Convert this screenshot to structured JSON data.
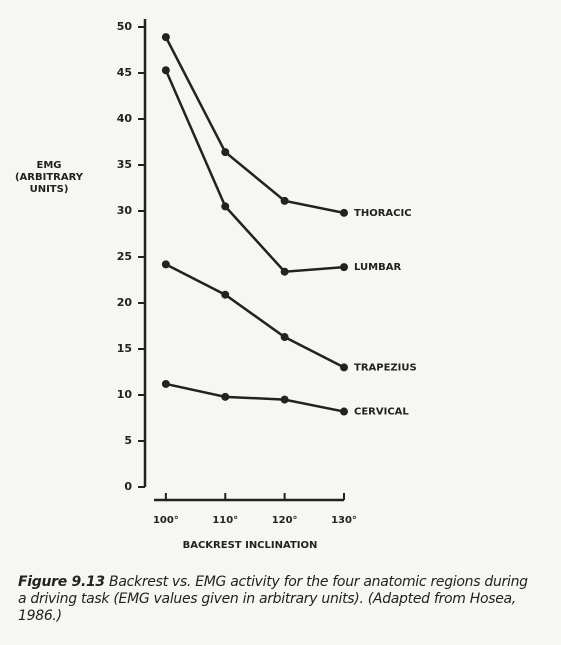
{
  "chart_data": {
    "type": "line",
    "x_label": "BACKREST INCLINATION",
    "y_label": "EMG (ARBITRARY UNITS)",
    "x": [
      100,
      110,
      120,
      130
    ],
    "xlim": [
      98,
      130
    ],
    "xticks": [
      {
        "value": 100,
        "label": "100°"
      },
      {
        "value": 110,
        "label": "110°"
      },
      {
        "value": 120,
        "label": "120°"
      },
      {
        "value": 130,
        "label": "130°"
      }
    ],
    "ylim": [
      0,
      50
    ],
    "yticks": [
      0,
      5,
      10,
      15,
      20,
      25,
      30,
      35,
      40,
      45,
      50
    ],
    "grid": false,
    "series": [
      {
        "name": "THORACIC",
        "color": "#222222",
        "values": [
          48.9,
          36.4,
          31.1,
          29.8
        ]
      },
      {
        "name": "LUMBAR",
        "color": "#222222",
        "values": [
          45.3,
          30.5,
          23.4,
          23.9
        ]
      },
      {
        "name": "TRAPEZIUS",
        "color": "#222222",
        "values": [
          24.2,
          20.9,
          16.3,
          13.0
        ]
      },
      {
        "name": "CERVICAL",
        "color": "#222222",
        "values": [
          11.2,
          9.8,
          9.5,
          8.2
        ]
      }
    ]
  },
  "caption": {
    "label": "Figure 9.13",
    "text": "Backrest vs. EMG activity for the four anatomic regions during a driving task (EMG values given in arbitrary units). (Adapted from Hosea, 1986.)"
  }
}
